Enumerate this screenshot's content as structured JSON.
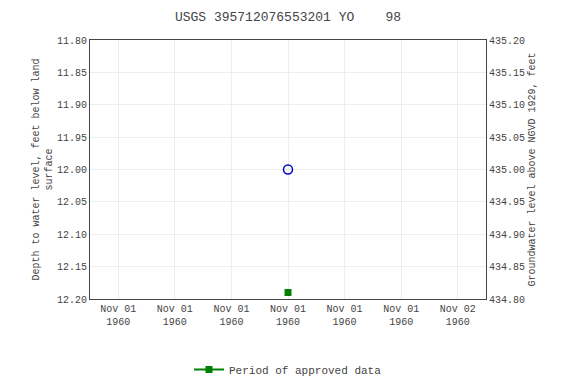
{
  "chart_data": {
    "type": "scatter",
    "title": "USGS 395712076553201 YO    98",
    "ylabel": "Depth to water level, feet below land\nsurface",
    "y2label": "Groundwater level above NGVD 1929, feet",
    "categories": [
      "Nov 01\n1960",
      "Nov 01\n1960",
      "Nov 01\n1960",
      "Nov 01\n1960",
      "Nov 01\n1960",
      "Nov 01\n1960",
      "Nov 02\n1960"
    ],
    "series": [
      {
        "color": "#0000cc",
        "marker": "circle-open",
        "values": [
          null,
          null,
          null,
          12.0,
          null,
          null,
          null
        ]
      },
      {
        "name": "Period of approved data",
        "color": "#008000",
        "marker": "square",
        "line_style": "solid",
        "values": [
          null,
          null,
          null,
          12.19,
          null,
          null,
          null
        ]
      }
    ],
    "ylim": [
      12.2,
      11.8
    ],
    "yticks": [
      {
        "value": 11.8,
        "label": "11.80"
      },
      {
        "value": 11.85,
        "label": "11.85"
      },
      {
        "value": 11.9,
        "label": "11.90"
      },
      {
        "value": 11.95,
        "label": "11.95"
      },
      {
        "value": 12.0,
        "label": "12.00"
      },
      {
        "value": 12.05,
        "label": "12.05"
      },
      {
        "value": 12.1,
        "label": "12.10"
      },
      {
        "value": 12.15,
        "label": "12.15"
      },
      {
        "value": 12.2,
        "label": "12.20"
      }
    ],
    "y2lim": [
      434.8,
      435.2
    ],
    "y2ticks": [
      {
        "value": 435.2,
        "label": "435.20"
      },
      {
        "value": 435.15,
        "label": "435.15"
      },
      {
        "value": 435.1,
        "label": "435.10"
      },
      {
        "value": 435.05,
        "label": "435.05"
      },
      {
        "value": 435.0,
        "label": "435.00"
      },
      {
        "value": 434.95,
        "label": "434.95"
      },
      {
        "value": 434.9,
        "label": "434.90"
      },
      {
        "value": 434.85,
        "label": "434.85"
      },
      {
        "value": 434.8,
        "label": "434.80"
      }
    ],
    "grid": true,
    "legend": "bottom"
  }
}
